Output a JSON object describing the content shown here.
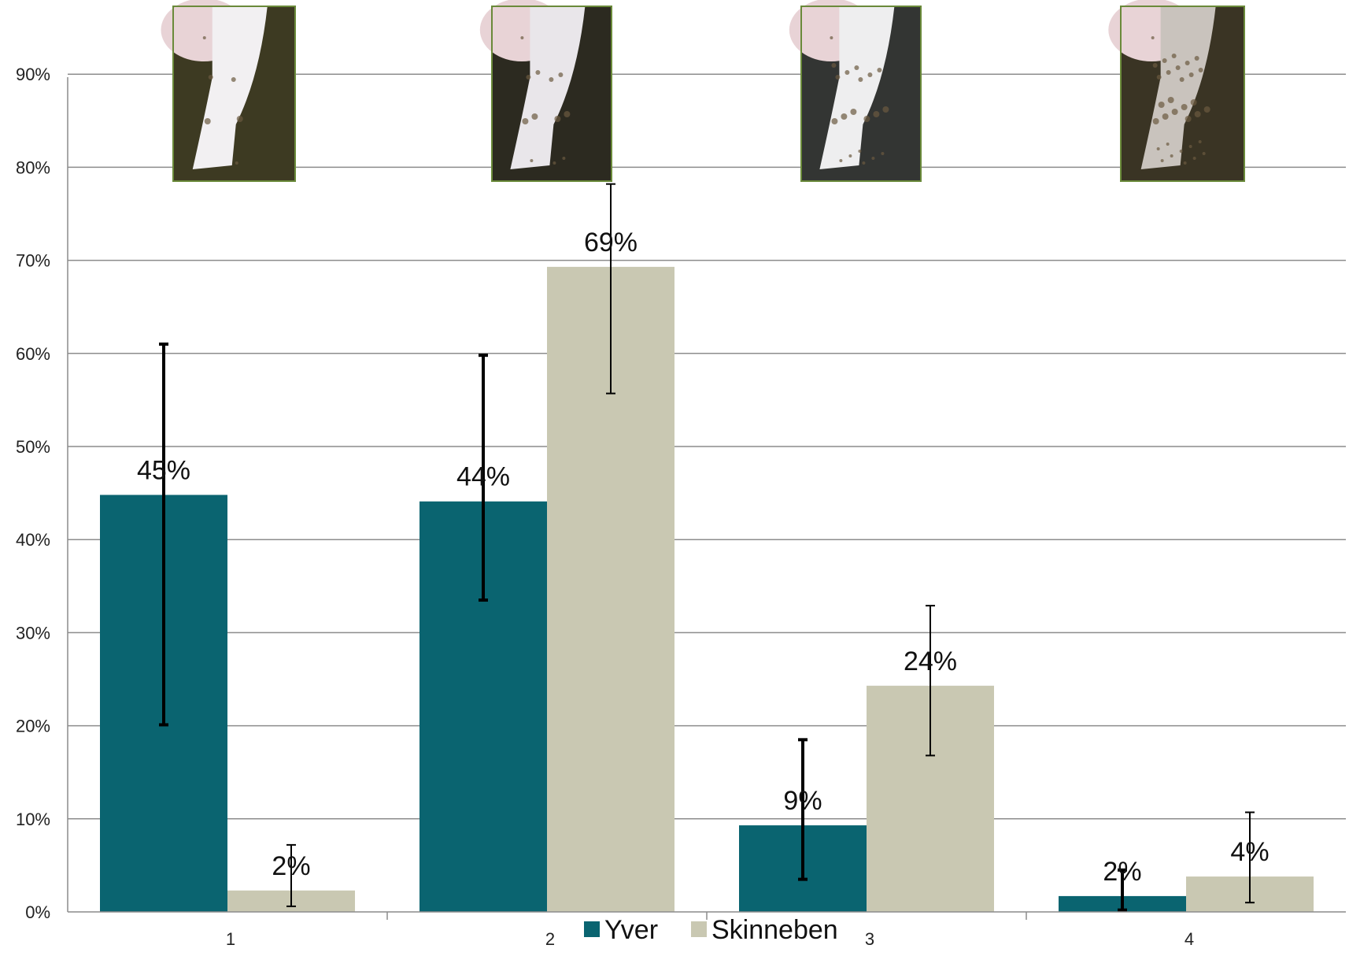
{
  "chart_data": {
    "type": "bar",
    "categories": [
      "1",
      "2",
      "3",
      "4"
    ],
    "ylim": [
      0,
      0.9
    ],
    "y_ticks": [
      {
        "value": 0.0,
        "label": "0%"
      },
      {
        "value": 0.1,
        "label": "10%"
      },
      {
        "value": 0.2,
        "label": "20%"
      },
      {
        "value": 0.3,
        "label": "30%"
      },
      {
        "value": 0.4,
        "label": "40%"
      },
      {
        "value": 0.5,
        "label": "50%"
      },
      {
        "value": 0.6,
        "label": "60%"
      },
      {
        "value": 0.7,
        "label": "70%"
      },
      {
        "value": 0.8,
        "label": "80%"
      },
      {
        "value": 0.9,
        "label": "90%"
      }
    ],
    "grid": true,
    "legend_position": "bottom",
    "series": [
      {
        "name": "Yver",
        "color": "#0a6470",
        "values": [
          0.448,
          0.441,
          0.093,
          0.017
        ],
        "labels": [
          "45%",
          "44%",
          "9%",
          "2%"
        ],
        "error_low": [
          0.201,
          0.335,
          0.035,
          0.002
        ],
        "error_high": [
          0.61,
          0.598,
          0.185,
          0.045
        ]
      },
      {
        "name": "Skinneben",
        "color": "#c9c8b2",
        "values": [
          0.023,
          0.693,
          0.243,
          0.038
        ],
        "labels": [
          "2%",
          "69%",
          "24%",
          "4%"
        ],
        "error_low": [
          0.006,
          0.557,
          0.168,
          0.01
        ],
        "error_high": [
          0.072,
          0.782,
          0.329,
          0.107
        ]
      }
    ],
    "images": [
      {
        "category": "1",
        "icon": "cow-leg-clean-photo"
      },
      {
        "category": "2",
        "icon": "cow-leg-slightly-dirty-photo"
      },
      {
        "category": "3",
        "icon": "cow-leg-dirty-photo"
      },
      {
        "category": "4",
        "icon": "cow-leg-very-dirty-photo"
      }
    ]
  }
}
